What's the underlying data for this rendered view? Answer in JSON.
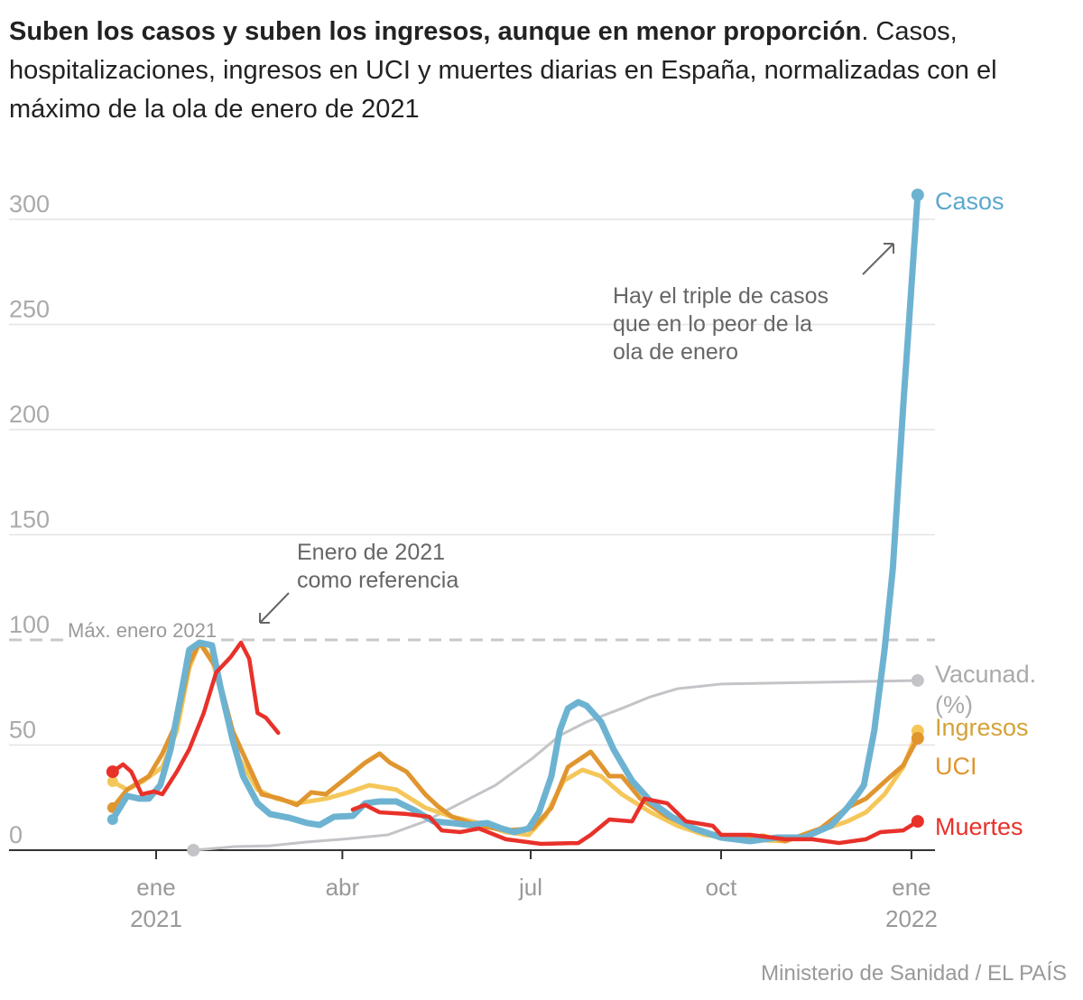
{
  "title": {
    "bold": "Suben los casos y suben los ingresos, aunque en menor proporción",
    "rest": ". Casos, hospitalizaciones, ingresos en UCI y muertes diarias en España, normalizadas con el máximo de la ola de enero de 2021"
  },
  "source": "Ministerio de Sanidad / EL PAÍS",
  "chart_data": {
    "type": "line",
    "x_unit": "days since 2021-01-01",
    "ylim": [
      0,
      320
    ],
    "yticks": [
      0,
      50,
      100,
      150,
      200,
      250,
      300
    ],
    "xticks": [
      {
        "day": 0,
        "label": "ene",
        "sub": "2021"
      },
      {
        "day": 90,
        "label": "abr",
        "sub": ""
      },
      {
        "day": 181,
        "label": "jul",
        "sub": ""
      },
      {
        "day": 273,
        "label": "oct",
        "sub": ""
      },
      {
        "day": 365,
        "label": "ene",
        "sub": "2022"
      }
    ],
    "reference": {
      "value": 100,
      "label": "Máx. enero 2021"
    },
    "annotations": [
      {
        "text": [
          "Enero de 2021",
          "como referencia"
        ]
      },
      {
        "text": [
          "Hay el triple de casos",
          "que en lo peor de la",
          "ola de enero"
        ]
      }
    ],
    "series": [
      {
        "name": "Vacunad. (%)",
        "label": [
          "Vacunad.",
          "(%)"
        ],
        "color": "#c4c4c8",
        "width": 3,
        "segments": [
          [
            [
              18,
              0
            ],
            [
              38,
              1.7
            ],
            [
              55,
              2.1
            ],
            [
              73,
              3.9
            ],
            [
              90,
              5.2
            ],
            [
              112,
              7.3
            ],
            [
              130,
              13.7
            ],
            [
              147,
              22.3
            ],
            [
              164,
              30.9
            ],
            [
              182,
              43.8
            ],
            [
              195,
              54.5
            ],
            [
              208,
              61
            ],
            [
              225,
              67.4
            ],
            [
              239,
              73
            ],
            [
              252,
              76.8
            ],
            [
              273,
              79
            ],
            [
              317,
              79.8
            ],
            [
              368,
              80.7
            ]
          ]
        ],
        "dot_start": true
      },
      {
        "name": "Ingresos",
        "label": [
          "Ingresos"
        ],
        "color": "#f5c75a",
        "labelColor": "#d4a236",
        "width": 5,
        "segments": [
          [
            [
              -21,
              32.6
            ],
            [
              -14,
              28.8
            ],
            [
              -6,
              33
            ],
            [
              3,
              39.5
            ],
            [
              10,
              56.7
            ],
            [
              16,
              86.7
            ],
            [
              21,
              98.7
            ],
            [
              27,
              91
            ],
            [
              34,
              65
            ],
            [
              40,
              43.8
            ],
            [
              49,
              28.8
            ],
            [
              58,
              24.5
            ],
            [
              68,
              22.3
            ],
            [
              82,
              24.5
            ],
            [
              93,
              27.5
            ],
            [
              103,
              30.9
            ],
            [
              116,
              28.8
            ],
            [
              130,
              20.2
            ],
            [
              143,
              15.9
            ],
            [
              156,
              12.9
            ],
            [
              169,
              8.6
            ],
            [
              180,
              7.3
            ],
            [
              188,
              15.9
            ],
            [
              197,
              33
            ],
            [
              206,
              38.2
            ],
            [
              215,
              35.2
            ],
            [
              225,
              26.6
            ],
            [
              239,
              18
            ],
            [
              252,
              11.6
            ],
            [
              265,
              7.3
            ],
            [
              282,
              5.2
            ],
            [
              304,
              4.3
            ],
            [
              321,
              9.4
            ],
            [
              334,
              13.7
            ],
            [
              343,
              18
            ],
            [
              352,
              26.6
            ],
            [
              361,
              39.5
            ],
            [
              368,
              56.7
            ]
          ]
        ]
      },
      {
        "name": "UCI",
        "label": [
          "UCI"
        ],
        "color": "#e0952f",
        "labelColor": "#e0952f",
        "width": 5,
        "segments": [
          [
            [
              -21,
              20.2
            ],
            [
              -14,
              28.8
            ],
            [
              -3.5,
              35.2
            ],
            [
              3,
              45.9
            ],
            [
              10,
              61
            ],
            [
              16,
              88.8
            ],
            [
              21,
              98.7
            ],
            [
              29,
              86.7
            ],
            [
              37,
              56.7
            ],
            [
              43,
              43.8
            ],
            [
              51,
              26.6
            ],
            [
              60,
              24.5
            ],
            [
              68,
              21.5
            ],
            [
              75,
              27.5
            ],
            [
              82,
              26.6
            ],
            [
              93,
              35.2
            ],
            [
              101,
              41.6
            ],
            [
              108,
              45.9
            ],
            [
              113,
              41.6
            ],
            [
              121,
              37.3
            ],
            [
              130,
              26.6
            ],
            [
              136,
              21
            ],
            [
              143,
              15.9
            ],
            [
              156,
              11.6
            ],
            [
              169,
              9.4
            ],
            [
              182,
              10.3
            ],
            [
              191,
              20.2
            ],
            [
              199,
              39.5
            ],
            [
              210,
              46.8
            ],
            [
              219,
              35.2
            ],
            [
              225,
              35.2
            ],
            [
              234,
              24.5
            ],
            [
              247,
              15.9
            ],
            [
              265,
              8.6
            ],
            [
              282,
              5.2
            ],
            [
              293,
              6.9
            ],
            [
              304,
              4.3
            ],
            [
              321,
              10.3
            ],
            [
              334,
              20.2
            ],
            [
              343,
              24.5
            ],
            [
              354,
              34.3
            ],
            [
              361,
              40.3
            ],
            [
              368,
              53.2
            ]
          ]
        ]
      },
      {
        "name": "Casos",
        "label": [
          "Casos"
        ],
        "color": "#6db3d1",
        "labelColor": "#5aa8cc",
        "width": 7,
        "segments": [
          [
            [
              -21,
              14.6
            ],
            [
              -14,
              25.8
            ],
            [
              -8,
              24.5
            ],
            [
              -3.5,
              24.5
            ],
            [
              2,
              30.9
            ],
            [
              7,
              48
            ],
            [
              12,
              73.8
            ],
            [
              16,
              95.3
            ],
            [
              21,
              98.7
            ],
            [
              27,
              97.4
            ],
            [
              31,
              78
            ],
            [
              37,
              52.4
            ],
            [
              42,
              35.2
            ],
            [
              49,
              22.3
            ],
            [
              55,
              17.2
            ],
            [
              64,
              15.5
            ],
            [
              73,
              12.9
            ],
            [
              79,
              12
            ],
            [
              86,
              15.9
            ],
            [
              95,
              16.3
            ],
            [
              101,
              22.3
            ],
            [
              108,
              23.2
            ],
            [
              116,
              23.2
            ],
            [
              125,
              18.9
            ],
            [
              134,
              13.7
            ],
            [
              143,
              12.9
            ],
            [
              151,
              12
            ],
            [
              160,
              12.9
            ],
            [
              167,
              10.3
            ],
            [
              173,
              8.6
            ],
            [
              180,
              10.3
            ],
            [
              185,
              18
            ],
            [
              191,
              35.2
            ],
            [
              195,
              56.7
            ],
            [
              199,
              67.4
            ],
            [
              204,
              70.4
            ],
            [
              208,
              68.7
            ],
            [
              215,
              61
            ],
            [
              221,
              48
            ],
            [
              230,
              33
            ],
            [
              239,
              23.2
            ],
            [
              249,
              15.9
            ],
            [
              260,
              10.3
            ],
            [
              273,
              6
            ],
            [
              287,
              4.3
            ],
            [
              300,
              6
            ],
            [
              313,
              6
            ],
            [
              326,
              11.6
            ],
            [
              334,
              20.2
            ],
            [
              339,
              26.6
            ],
            [
              342,
              30.9
            ],
            [
              347,
              56.7
            ],
            [
              352,
              95.3
            ],
            [
              356,
              134
            ],
            [
              361,
              211
            ],
            [
              364,
              254
            ],
            [
              368,
              311.6
            ]
          ]
        ]
      },
      {
        "name": "Muertes",
        "label": [
          "Muertes"
        ],
        "color": "#e8312a",
        "labelColor": "#e8312a",
        "width": 4.5,
        "dot_start": true,
        "segments": [
          [
            [
              -21,
              37.3
            ],
            [
              -16,
              40.8
            ],
            [
              -12,
              37.3
            ],
            [
              -7,
              26.6
            ],
            [
              -1,
              27.9
            ],
            [
              3,
              26.6
            ],
            [
              10,
              37.3
            ],
            [
              16,
              48
            ],
            [
              23,
              65.2
            ],
            [
              29,
              84.5
            ],
            [
              36,
              91.8
            ],
            [
              41,
              98.7
            ],
            [
              45,
              91
            ],
            [
              49,
              65.2
            ],
            [
              53,
              63
            ],
            [
              59,
              55.8
            ]
          ],
          [
            [
              95,
              19.3
            ],
            [
              101,
              21.5
            ],
            [
              108,
              18
            ],
            [
              121,
              17.2
            ],
            [
              132,
              15.9
            ],
            [
              138,
              9.4
            ],
            [
              147,
              8.6
            ],
            [
              156,
              10.3
            ],
            [
              169,
              5.2
            ],
            [
              186,
              3
            ],
            [
              204,
              3.4
            ],
            [
              210,
              7.3
            ],
            [
              219,
              14.6
            ],
            [
              230,
              13.7
            ],
            [
              236,
              24.5
            ],
            [
              247,
              22.3
            ],
            [
              256,
              13.7
            ],
            [
              269,
              11.6
            ],
            [
              273,
              7.3
            ],
            [
              287,
              7.3
            ],
            [
              304,
              5.2
            ],
            [
              317,
              5.2
            ],
            [
              330,
              3.4
            ],
            [
              343,
              5.2
            ],
            [
              350,
              8.6
            ],
            [
              361,
              9.4
            ],
            [
              368,
              13.7
            ]
          ]
        ]
      }
    ]
  }
}
